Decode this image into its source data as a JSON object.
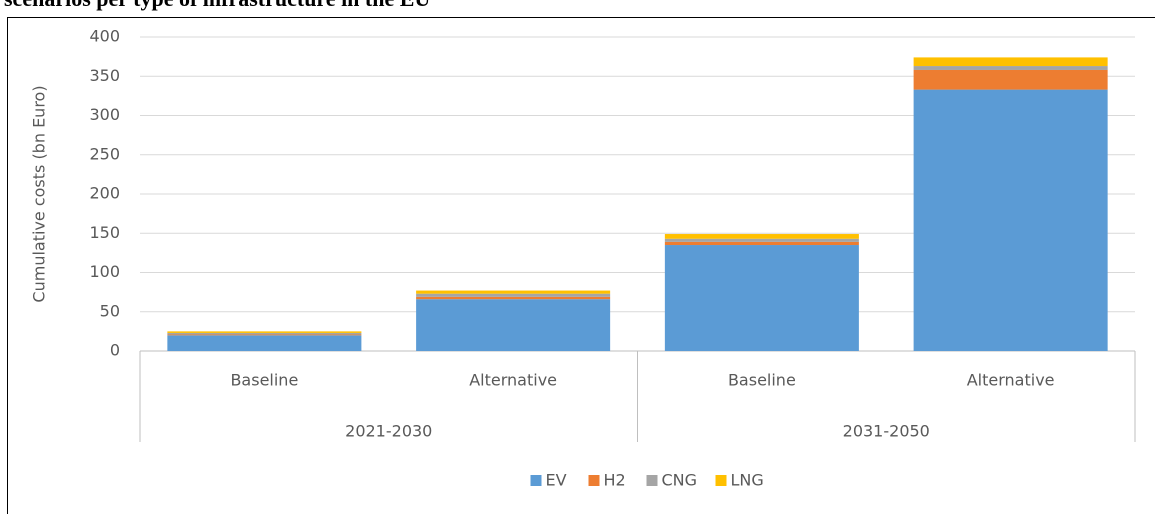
{
  "chart_data": {
    "type": "stacked-bar",
    "title": "scenarios per type of infrastructure in the EU",
    "y_label": "Cumulative costs (bn Euro)",
    "categories": [
      "Baseline",
      "Alternative",
      "Baseline",
      "Alternative"
    ],
    "groups": [
      "2021-2030",
      "2031-2050"
    ],
    "series": [
      {
        "name": "EV",
        "color": "#5b9bd5",
        "values": [
          20,
          66,
          135,
          333
        ]
      },
      {
        "name": "H2",
        "color": "#ed7d31",
        "values": [
          1,
          3,
          4,
          25
        ]
      },
      {
        "name": "CNG",
        "color": "#a5a5a5",
        "values": [
          2,
          4,
          4,
          5
        ]
      },
      {
        "name": "LNG",
        "color": "#ffc000",
        "values": [
          2,
          4,
          6,
          11
        ]
      }
    ],
    "ylim": [
      0,
      400
    ],
    "yticks": [
      0,
      50,
      100,
      150,
      200,
      250,
      300,
      350,
      400
    ],
    "grid": true,
    "legend": "bottom"
  }
}
